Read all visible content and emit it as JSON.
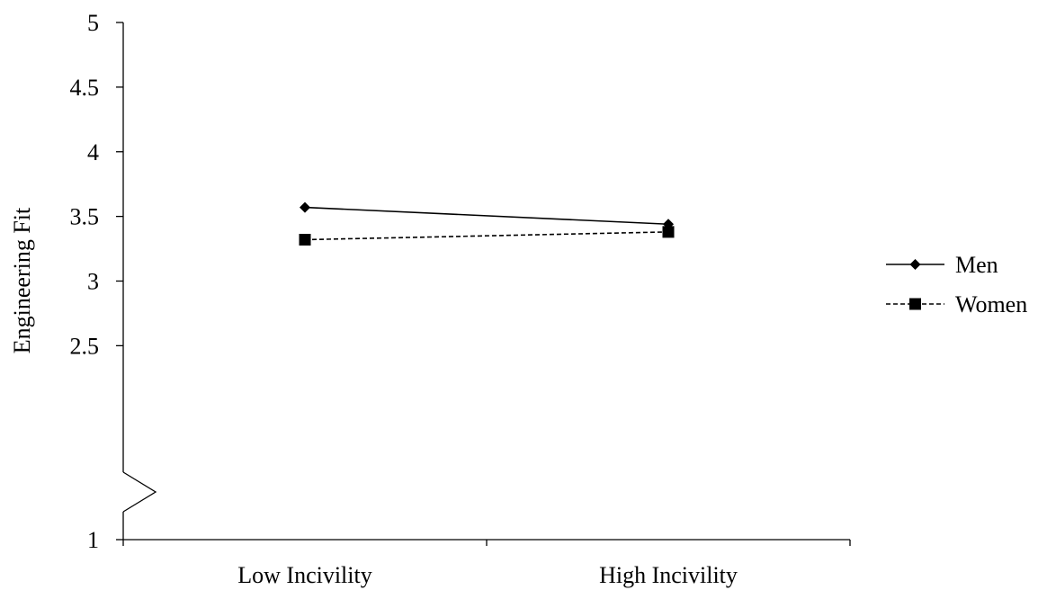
{
  "chart_data": {
    "type": "line",
    "title": "",
    "xlabel": "",
    "ylabel": "Engineering Fit",
    "categories": [
      "Low Incivility",
      "High Incivility"
    ],
    "ylim": [
      1,
      5
    ],
    "y_ticks": [
      "1",
      "2.5",
      "3",
      "3.5",
      "4",
      "4.5",
      "5"
    ],
    "axis_break": true,
    "grid": false,
    "legend_position": "right",
    "series": [
      {
        "name": "Men",
        "values": [
          3.57,
          3.44
        ],
        "marker": "diamond",
        "line_style": "solid",
        "color": "#000000"
      },
      {
        "name": "Women",
        "values": [
          3.32,
          3.38
        ],
        "marker": "square",
        "line_style": "dashed",
        "color": "#000000"
      }
    ]
  }
}
